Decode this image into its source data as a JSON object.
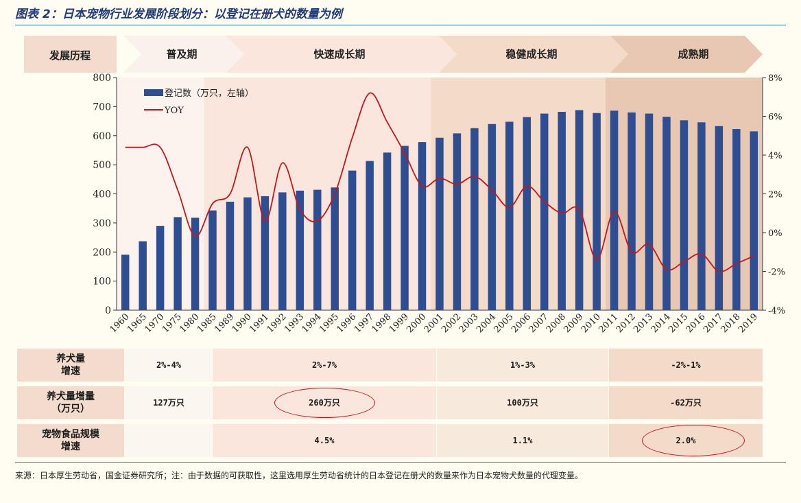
{
  "title": "图表 2：日本宠物行业发展阶段划分：以登记在册犬的数量为例",
  "stage_header": {
    "label": "发展历程",
    "stages": [
      "普及期",
      "快速成长期",
      "稳健成长期",
      "成熟期"
    ]
  },
  "colors": {
    "bar": "#2e4e93",
    "line": "#c4161c",
    "stage_1": "#fcf3ee",
    "stage_2": "#fae6dc",
    "stage_3": "#f4dac9",
    "stage_4": "#e8c8b2",
    "label_box": "#f3dccd",
    "rule": "#2c6da8"
  },
  "chart_data": {
    "type": "bar",
    "categories": [
      "1960",
      "1965",
      "1970",
      "1975",
      "1980",
      "1985",
      "1989",
      "1990",
      "1991",
      "1992",
      "1993",
      "1994",
      "1995",
      "1996",
      "1997",
      "1998",
      "1999",
      "2000",
      "2001",
      "2002",
      "2003",
      "2004",
      "2005",
      "2006",
      "2007",
      "2008",
      "2009",
      "2010",
      "2011",
      "2012",
      "2013",
      "2014",
      "2015",
      "2016",
      "2017",
      "2018",
      "2019"
    ],
    "series": [
      {
        "name": "登记数（万只，左轴）",
        "type": "bar",
        "axis": "left",
        "values": [
          191,
          237,
          290,
          320,
          318,
          343,
          373,
          388,
          392,
          405,
          411,
          414,
          422,
          480,
          513,
          542,
          565,
          578,
          593,
          608,
          626,
          640,
          648,
          664,
          676,
          682,
          688,
          678,
          686,
          680,
          676,
          665,
          653,
          646,
          633,
          623,
          615
        ]
      },
      {
        "name": "YOY",
        "type": "line",
        "axis": "right",
        "values": [
          4.4,
          4.4,
          4.4,
          2.2,
          -0.2,
          1.5,
          2.0,
          4.4,
          0.6,
          3.6,
          1.2,
          0.6,
          2.0,
          4.9,
          7.2,
          5.7,
          4.1,
          2.4,
          2.8,
          2.5,
          2.9,
          2.2,
          1.3,
          2.4,
          1.6,
          1.0,
          1.2,
          -1.4,
          1.1,
          -1.0,
          -0.6,
          -1.9,
          -1.5,
          -1.1,
          -2.0,
          -1.6,
          -1.2
        ]
      }
    ],
    "ylim_left": [
      0,
      800
    ],
    "yticks_left": [
      "0",
      "100",
      "200",
      "300",
      "400",
      "500",
      "600",
      "700",
      "800"
    ],
    "ylim_right": [
      -4,
      8
    ],
    "yticks_right": [
      "-4%",
      "-2%",
      "0%",
      "2%",
      "4%",
      "6%",
      "8%"
    ],
    "legend_position": "top-left",
    "background_stages": [
      {
        "stage": "普及期",
        "from": "1960",
        "to": "1980"
      },
      {
        "stage": "快速成长期",
        "from": "1985",
        "to": "2000"
      },
      {
        "stage": "稳健成长期",
        "from": "2001",
        "to": "2010"
      },
      {
        "stage": "成熟期",
        "from": "2011",
        "to": "2019"
      }
    ]
  },
  "table": {
    "row_labels": [
      [
        "养犬量",
        "增速"
      ],
      [
        "养犬量增量",
        "（万只）"
      ],
      [
        "宠物食品规模",
        "增速"
      ]
    ],
    "rows": [
      [
        "2%-4%",
        "2%-7%",
        "1%-3%",
        "-2%-1%"
      ],
      [
        "127万只",
        "260万只",
        "100万只",
        "-62万只"
      ],
      [
        "",
        "4.5%",
        "1.1%",
        "2.0%"
      ]
    ],
    "circled": [
      "260万只",
      "2.0%"
    ]
  },
  "source": "来源：日本厚生劳动省，国金证券研究所；注：由于数据的可获取性，这里选用厚生劳动省统计的日本登记在册犬的数量来作为日本宠物犬数量的代理变量。"
}
